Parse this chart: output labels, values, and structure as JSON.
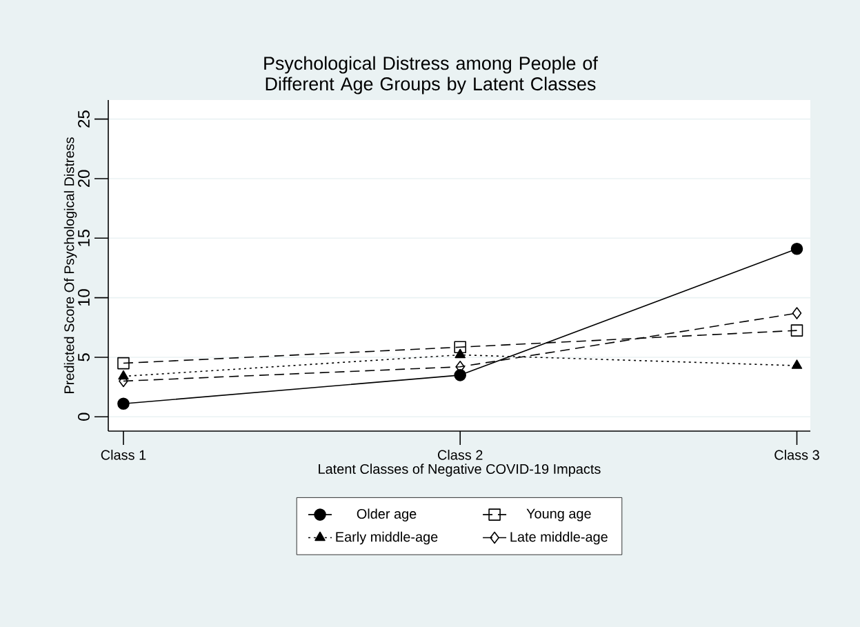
{
  "chart_data": {
    "type": "line",
    "title": "Psychological Distress among People of Different Age Groups by Latent Classes",
    "xlabel": "Latent Classes of Negative COVID-19 Impacts",
    "ylabel": "Predicted Score Of Psychological Distress",
    "categories": [
      "Class 1",
      "Class 2",
      "Class 3"
    ],
    "series": [
      {
        "name": "Older age",
        "color": "#000000",
        "marker": "circle",
        "line_style": "solid",
        "values": [
          1.1,
          3.5,
          14.1
        ]
      },
      {
        "name": "Young age",
        "color": "#000000",
        "marker": "square",
        "line_style": "dashed",
        "values": [
          4.5,
          5.85,
          7.25
        ]
      },
      {
        "name": "Early middle-age",
        "color": "#000000",
        "marker": "triangle",
        "line_style": "dotted",
        "values": [
          3.4,
          5.2,
          4.3
        ]
      },
      {
        "name": "Late middle-age",
        "color": "#000000",
        "marker": "diamond",
        "line_style": "dashed",
        "values": [
          3.0,
          4.2,
          8.7
        ]
      }
    ],
    "ylim": [
      -1.2,
      26.6
    ],
    "yticks": [
      0,
      5,
      10,
      15,
      20,
      25
    ],
    "grid": "y",
    "legend": "bottom"
  }
}
